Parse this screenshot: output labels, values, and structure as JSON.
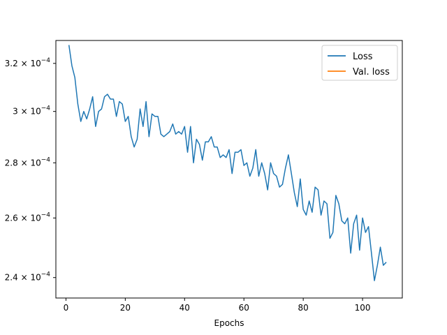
{
  "chart_data": {
    "type": "line",
    "title": "",
    "xlabel": "Epochs",
    "ylabel": "",
    "yscale": "log",
    "xlim": [
      -3.4,
      113.4
    ],
    "ylim": [
      0.0002335,
      0.00033
    ],
    "grid": false,
    "legend_position": "top-right",
    "xticks": [
      0,
      20,
      40,
      60,
      80,
      100
    ],
    "xtick_labels": [
      "0",
      "20",
      "40",
      "60",
      "80",
      "100"
    ],
    "yticks": [
      0.00024,
      0.00026,
      0.00028,
      0.0003,
      0.00032
    ],
    "ytick_labels": [
      {
        "mantissa": "2.4",
        "exp": "−4"
      },
      {
        "mantissa": "2.6",
        "exp": "−4"
      },
      {
        "mantissa": "2.8",
        "exp": "−4"
      },
      {
        "mantissa": "3",
        "exp": "−4"
      },
      {
        "mantissa": "3.2",
        "exp": "−4"
      }
    ],
    "series": [
      {
        "name": "Loss",
        "color": "#1f77b4",
        "x": [
          1,
          2,
          3,
          4,
          5,
          6,
          7,
          8,
          9,
          10,
          11,
          12,
          13,
          14,
          15,
          16,
          17,
          18,
          19,
          20,
          21,
          22,
          23,
          24,
          25,
          26,
          27,
          28,
          29,
          30,
          31,
          32,
          33,
          34,
          35,
          36,
          37,
          38,
          39,
          40,
          41,
          42,
          43,
          44,
          45,
          46,
          47,
          48,
          49,
          50,
          51,
          52,
          53,
          54,
          55,
          56,
          57,
          58,
          59,
          60,
          61,
          62,
          63,
          64,
          65,
          66,
          67,
          68,
          69,
          70,
          71,
          72,
          73,
          74,
          75,
          76,
          77,
          78,
          79,
          80,
          81,
          82,
          83,
          84,
          85,
          86,
          87,
          88,
          89,
          90,
          91,
          92,
          93,
          94,
          95,
          96,
          97,
          98,
          99,
          100,
          101,
          102,
          103,
          104,
          105,
          106,
          107,
          108
        ],
        "y": [
          0.000328,
          0.000319,
          0.000314,
          0.000303,
          0.000296,
          0.0003,
          0.000297,
          0.000301,
          0.000306,
          0.000294,
          0.0003,
          0.000301,
          0.000306,
          0.000307,
          0.000305,
          0.000305,
          0.000298,
          0.000304,
          0.000303,
          0.000296,
          0.000298,
          0.00029,
          0.000286,
          0.000289,
          0.000301,
          0.000294,
          0.000304,
          0.00029,
          0.000299,
          0.000298,
          0.000298,
          0.000291,
          0.00029,
          0.000291,
          0.000292,
          0.000295,
          0.000291,
          0.000292,
          0.000291,
          0.000294,
          0.000284,
          0.000294,
          0.00028,
          0.000289,
          0.000287,
          0.000281,
          0.000288,
          0.000288,
          0.00029,
          0.000286,
          0.000286,
          0.000282,
          0.000283,
          0.000282,
          0.000285,
          0.000276,
          0.000284,
          0.000284,
          0.000285,
          0.000279,
          0.00028,
          0.000275,
          0.000278,
          0.000285,
          0.000275,
          0.00028,
          0.000276,
          0.00027,
          0.00028,
          0.000276,
          0.000275,
          0.000271,
          0.000272,
          0.000278,
          0.000283,
          0.000276,
          0.000269,
          0.000264,
          0.000274,
          0.000263,
          0.000261,
          0.000266,
          0.000262,
          0.000271,
          0.00027,
          0.000261,
          0.000266,
          0.000265,
          0.000253,
          0.000255,
          0.000268,
          0.000265,
          0.000259,
          0.000258,
          0.00026,
          0.000248,
          0.000258,
          0.000261,
          0.000249,
          0.00026,
          0.000255,
          0.000257,
          0.000248,
          0.000239,
          0.000244,
          0.00025,
          0.000244,
          0.000245
        ]
      },
      {
        "name": "Val. loss",
        "color": "#ff7f0e",
        "x": [],
        "y": []
      }
    ]
  }
}
